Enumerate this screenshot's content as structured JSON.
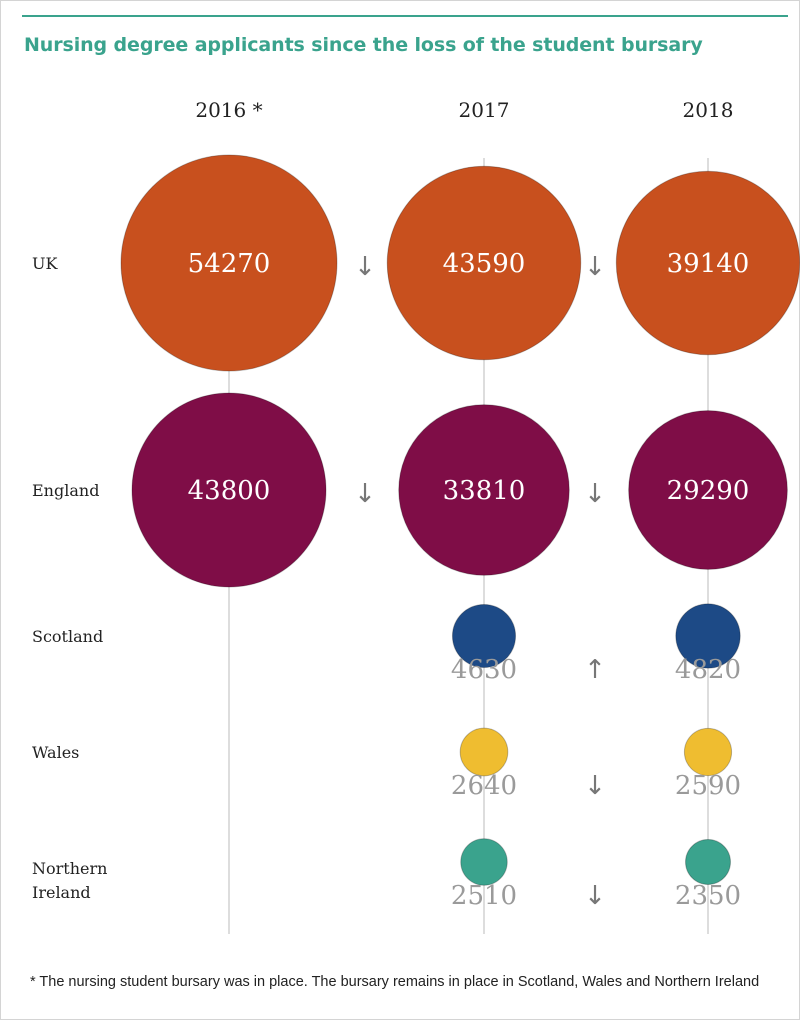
{
  "title": "Nursing degree applicants since the loss of the student bursary",
  "footnote": "* The nursing student bursary was in place. The bursary remains in place in Scotland, Wales and Northern Ireland",
  "colors": {
    "accent": "#3aa38d",
    "UK": "#c8501e",
    "England": "#7f0d47",
    "Scotland": "#1d4a86",
    "Wales": "#efbd30",
    "Northern Ireland": "#3aa38d"
  },
  "chart_data": {
    "type": "bubble",
    "columns": [
      "2016 *",
      "2017",
      "2018"
    ],
    "rows": [
      {
        "label": "UK",
        "values": [
          54270,
          43590,
          39140
        ],
        "trend": [
          "↓",
          "↓"
        ]
      },
      {
        "label": "England",
        "values": [
          43800,
          33810,
          29290
        ],
        "trend": [
          "↓",
          "↓"
        ]
      },
      {
        "label": "Scotland",
        "values": [
          null,
          4630,
          4820
        ],
        "trend": [
          null,
          "↑"
        ]
      },
      {
        "label": "Wales",
        "values": [
          null,
          2640,
          2590
        ],
        "trend": [
          null,
          "↓"
        ]
      },
      {
        "label": "Northern Ireland",
        "values": [
          null,
          2510,
          2350
        ],
        "trend": [
          null,
          "↓"
        ]
      }
    ]
  }
}
